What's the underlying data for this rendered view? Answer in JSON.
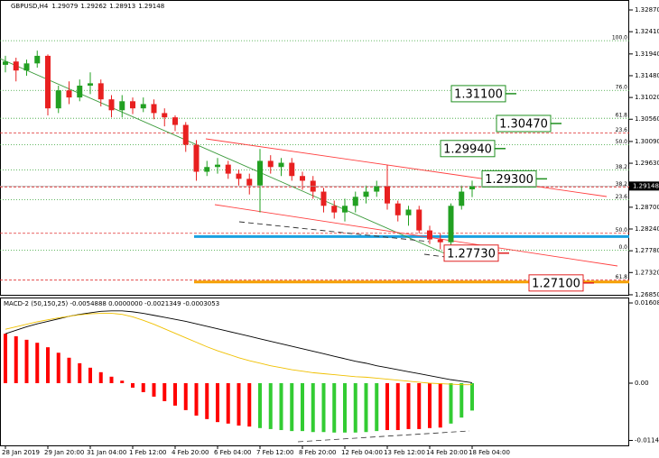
{
  "chart_data": {
    "type": "candlestick",
    "title": "GBPUSD,H4",
    "categories": [
      "28 Jan 2019",
      null,
      null,
      null,
      "29 Jan 20:00",
      null,
      null,
      null,
      "31 Jan 04:00",
      null,
      null,
      null,
      "1 Feb 12:00",
      null,
      null,
      null,
      "4 Feb 20:00",
      null,
      null,
      null,
      "6 Feb 04:00",
      null,
      null,
      null,
      "7 Feb 12:00",
      null,
      null,
      null,
      "8 Feb 20:00",
      null,
      null,
      null,
      "12 Feb 04:00",
      null,
      null,
      null,
      "13 Feb 12:00",
      null,
      null,
      null,
      "14 Feb 20:00",
      null,
      null,
      null,
      "18 Feb 04:00"
    ],
    "open": [
      1.3171,
      1.3178,
      1.3159,
      1.3174,
      1.319,
      1.3079,
      1.3117,
      1.3102,
      1.3127,
      1.3132,
      1.3098,
      1.3075,
      1.3094,
      1.3079,
      1.3088,
      1.3069,
      1.306,
      1.3044,
      1.3002,
      1.2945,
      1.2955,
      1.296,
      1.2941,
      1.293,
      1.2916,
      1.2968,
      1.2955,
      1.2964,
      1.2936,
      1.2926,
      1.2903,
      1.2873,
      1.2859,
      1.2873,
      1.2892,
      1.2903,
      1.2915,
      1.2878,
      1.2853,
      1.2865,
      1.2821,
      1.2802,
      1.2796,
      1.2873,
      1.29079
    ],
    "high": [
      1.319,
      1.3186,
      1.3182,
      1.3201,
      1.3193,
      1.3127,
      1.3136,
      1.314,
      1.3155,
      1.314,
      1.3107,
      1.3107,
      1.3102,
      1.3102,
      1.3098,
      1.3079,
      1.3064,
      1.305,
      1.3012,
      1.2968,
      1.2974,
      1.2968,
      1.2949,
      1.2941,
      1.2993,
      1.298,
      1.2974,
      1.2974,
      1.2945,
      1.2936,
      1.2911,
      1.2884,
      1.2888,
      1.2903,
      1.2916,
      1.2926,
      1.2959,
      1.2884,
      1.2873,
      1.2873,
      1.2831,
      1.2815,
      1.2878,
      1.2916,
      1.29262
    ],
    "low": [
      1.3155,
      1.3136,
      1.3148,
      1.3165,
      1.3064,
      1.3069,
      1.3088,
      1.3094,
      1.3109,
      1.3083,
      1.306,
      1.306,
      1.3067,
      1.3071,
      1.3056,
      1.3041,
      1.3031,
      1.2987,
      1.2926,
      1.2936,
      1.2941,
      1.293,
      1.2916,
      1.2897,
      1.2859,
      1.2941,
      1.2936,
      1.2926,
      1.2907,
      1.2888,
      1.2859,
      1.2846,
      1.284,
      1.2859,
      1.2878,
      1.2892,
      1.2865,
      1.284,
      1.2831,
      1.2815,
      1.2792,
      1.2781,
      1.2789,
      1.2865,
      1.28913
    ],
    "close": [
      1.3178,
      1.3159,
      1.3174,
      1.319,
      1.3079,
      1.3117,
      1.3102,
      1.3127,
      1.3132,
      1.3098,
      1.3075,
      1.3094,
      1.3079,
      1.3088,
      1.3069,
      1.306,
      1.3044,
      1.3002,
      1.2945,
      1.2955,
      1.296,
      1.2941,
      1.293,
      1.2916,
      1.2968,
      1.2955,
      1.2964,
      1.2936,
      1.2926,
      1.2903,
      1.2873,
      1.2859,
      1.2873,
      1.2892,
      1.2903,
      1.2915,
      1.2878,
      1.2853,
      1.2865,
      1.2821,
      1.2802,
      1.2796,
      1.2873,
      1.2903,
      1.29148
    ],
    "up_color": "#22a022",
    "down_color": "#e82020",
    "ylim": [
      1.2683,
      1.3308
    ],
    "yticks": [
      {
        "value": 1.3287,
        "label": "1.32870"
      },
      {
        "value": 1.3241,
        "label": "1.32410"
      },
      {
        "value": 1.3194,
        "label": "1.31940"
      },
      {
        "value": 1.3148,
        "label": "1.31480"
      },
      {
        "value": 1.3102,
        "label": "1.31020"
      },
      {
        "value": 1.3056,
        "label": "1.30560"
      },
      {
        "value": 1.3009,
        "label": "1.30090"
      },
      {
        "value": 1.2963,
        "label": "1.29630"
      },
      {
        "value": 1.2917,
        "label": "1.29170"
      },
      {
        "value": 1.287,
        "label": "1.28700"
      },
      {
        "value": 1.2824,
        "label": "1.28240"
      },
      {
        "value": 1.2778,
        "label": "1.27780"
      },
      {
        "value": 1.2732,
        "label": "1.27320"
      },
      {
        "value": 1.2685,
        "label": "1.26850"
      }
    ],
    "fib_levels": [
      {
        "label": "100.0",
        "price": 1.3222,
        "color": "#30a030"
      },
      {
        "label": "76.0",
        "price": 1.3117,
        "color": "#30a030"
      },
      {
        "label": "61.8",
        "price": 1.3058,
        "color": "#30a030"
      },
      {
        "label": "23.6",
        "price": 1.3027,
        "color": "#e03030"
      },
      {
        "label": "50.0",
        "price": 1.3002,
        "color": "#30a030"
      },
      {
        "label": "38.2",
        "price": 1.2949,
        "color": "#30a030"
      },
      {
        "label": "38.2",
        "price": 1.2913,
        "color": "#e03030"
      },
      {
        "label": "23.6",
        "price": 1.2886,
        "color": "#30a030"
      },
      {
        "label": "50.0",
        "price": 1.2815,
        "color": "#e03030"
      },
      {
        "label": "0.0",
        "price": 1.2779,
        "color": "#30a030"
      },
      {
        "label": "61.8",
        "price": 1.2716,
        "color": "#e03030"
      }
    ],
    "levels": [
      {
        "value": 1.311,
        "label": "1.31100",
        "color": "#1f8f1f"
      },
      {
        "value": 1.3047,
        "label": "1.30470",
        "color": "#1f8f1f"
      },
      {
        "value": 1.2994,
        "label": "1.29940",
        "color": "#1f8f1f"
      },
      {
        "value": 1.293,
        "label": "1.29300",
        "color": "#1f8f1f"
      },
      {
        "value": 1.2773,
        "label": "1.27730",
        "color": "#e02020"
      },
      {
        "value": 1.271,
        "label": "1.27100",
        "color": "#e02020"
      }
    ],
    "hlines": [
      {
        "value": 1.2808,
        "color": "#1aa0e0"
      },
      {
        "value": 1.2712,
        "color": "#f5a000"
      }
    ],
    "indicator": {
      "type": "macd",
      "title": "MACD-2 (50,150,25) -0.0054888 0.0000000 -0.0021349 -0.0003053",
      "histogram": [
        0.0099,
        0.0094,
        0.0087,
        0.0081,
        0.0072,
        0.0061,
        0.0051,
        0.004,
        0.0031,
        0.0022,
        0.0013,
        0.0005,
        -0.0009,
        -0.0018,
        -0.0027,
        -0.0036,
        -0.0045,
        -0.0054,
        -0.0065,
        -0.0072,
        -0.0078,
        -0.0081,
        -0.0085,
        -0.0087,
        -0.009,
        -0.0092,
        -0.0094,
        -0.0096,
        -0.0096,
        -0.0098,
        -0.0098,
        -0.0099,
        -0.0099,
        -0.0099,
        -0.0098,
        -0.0096,
        -0.0094,
        -0.0094,
        -0.0092,
        -0.0092,
        -0.009,
        -0.0089,
        -0.0081,
        -0.0069,
        -0.0054888
      ],
      "histogram_colors": [
        "#ff0000",
        "#ff0000",
        "#ff0000",
        "#ff0000",
        "#ff0000",
        "#ff0000",
        "#ff0000",
        "#ff0000",
        "#ff0000",
        "#ff0000",
        "#ff0000",
        "#ff0000",
        "#ff0000",
        "#ff0000",
        "#ff0000",
        "#ff0000",
        "#ff0000",
        "#ff0000",
        "#ff0000",
        "#ff0000",
        "#ff0000",
        "#ff0000",
        "#ff0000",
        "#ff0000",
        "#33cc33",
        "#33cc33",
        "#33cc33",
        "#33cc33",
        "#33cc33",
        "#33cc33",
        "#33cc33",
        "#33cc33",
        "#33cc33",
        "#33cc33",
        "#33cc33",
        "#33cc33",
        "#ff0000",
        "#ff0000",
        "#ff0000",
        "#ff0000",
        "#ff0000",
        "#ff0000",
        "#33cc33",
        "#33cc33",
        "#33cc33"
      ],
      "series": [
        {
          "color": "#000000",
          "values": [
            0.0099,
            0.0106,
            0.0113,
            0.0119,
            0.0124,
            0.0129,
            0.0134,
            0.0138,
            0.0141,
            0.0144,
            0.0145,
            0.0145,
            0.0143,
            0.014,
            0.0136,
            0.0132,
            0.0128,
            0.0124,
            0.0119,
            0.0114,
            0.0109,
            0.0104,
            0.0099,
            0.0094,
            0.0089,
            0.0084,
            0.0079,
            0.0074,
            0.0069,
            0.0064,
            0.0059,
            0.0054,
            0.0049,
            0.0044,
            0.004,
            0.0035,
            0.0031,
            0.0027,
            0.0023,
            0.0019,
            0.0015,
            0.0011,
            0.0007,
            0.0004,
            0.0001
          ]
        },
        {
          "color": "#f0c000",
          "values": [
            0.0108,
            0.0113,
            0.0118,
            0.0123,
            0.0127,
            0.0131,
            0.0134,
            0.0137,
            0.0139,
            0.014,
            0.014,
            0.0138,
            0.0133,
            0.0126,
            0.0118,
            0.0109,
            0.01,
            0.0091,
            0.0082,
            0.0073,
            0.0065,
            0.0058,
            0.0051,
            0.0045,
            0.004,
            0.0035,
            0.0031,
            0.0027,
            0.0024,
            0.0021,
            0.0019,
            0.0017,
            0.0015,
            0.0013,
            0.0012,
            0.001,
            0.0008,
            0.0006,
            0.0004,
            0.0002,
            0.0,
            -0.0001,
            -0.0002,
            -0.0003,
            -0.0003
          ]
        }
      ],
      "ylim": [
        -0.01265,
        0.01717
      ],
      "yticks": [
        0.0160831,
        {
          "value": 0,
          "label": "0.00"
        },
        -0.011479
      ]
    }
  }
}
